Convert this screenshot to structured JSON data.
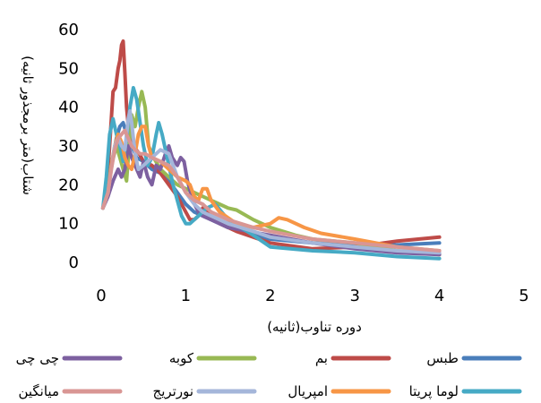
{
  "chart_data": {
    "type": "line",
    "title": "",
    "xlabel": "دوره تناوب(ثانیه)",
    "ylabel": "شتاب(متر برمجذور ثانیه)",
    "xlim": [
      0,
      5
    ],
    "ylim": [
      0,
      60
    ],
    "xticks": [
      "0",
      "1",
      "2",
      "3",
      "4",
      "5"
    ],
    "yticks": [
      "0",
      "10",
      "20",
      "30",
      "40",
      "50",
      "60"
    ],
    "grid": false,
    "legend_position": "bottom",
    "series": [
      {
        "name": "طبس",
        "color": "#4a7ebb",
        "points": [
          [
            0.02,
            14
          ],
          [
            0.08,
            20
          ],
          [
            0.12,
            25
          ],
          [
            0.18,
            32
          ],
          [
            0.22,
            35
          ],
          [
            0.26,
            36
          ],
          [
            0.3,
            33
          ],
          [
            0.36,
            30
          ],
          [
            0.42,
            27
          ],
          [
            0.5,
            26
          ],
          [
            0.6,
            24
          ],
          [
            0.7,
            23
          ],
          [
            0.8,
            21
          ],
          [
            0.9,
            18
          ],
          [
            1.0,
            15
          ],
          [
            1.1,
            13
          ],
          [
            1.2,
            12
          ],
          [
            1.3,
            11
          ],
          [
            1.5,
            9
          ],
          [
            1.8,
            7
          ],
          [
            2.0,
            6
          ],
          [
            2.5,
            5
          ],
          [
            3.0,
            4.5
          ],
          [
            3.5,
            4.5
          ],
          [
            4.0,
            5
          ]
        ]
      },
      {
        "name": "بم",
        "color": "#be4b48",
        "points": [
          [
            0.02,
            14
          ],
          [
            0.06,
            18
          ],
          [
            0.1,
            30
          ],
          [
            0.14,
            44
          ],
          [
            0.17,
            45
          ],
          [
            0.2,
            50
          ],
          [
            0.22,
            52
          ],
          [
            0.24,
            56
          ],
          [
            0.26,
            57
          ],
          [
            0.28,
            49
          ],
          [
            0.3,
            40
          ],
          [
            0.33,
            33
          ],
          [
            0.38,
            30
          ],
          [
            0.45,
            28
          ],
          [
            0.5,
            26
          ],
          [
            0.6,
            25
          ],
          [
            0.7,
            23
          ],
          [
            0.8,
            20
          ],
          [
            0.9,
            17
          ],
          [
            1.0,
            13
          ],
          [
            1.05,
            11
          ],
          [
            1.1,
            11
          ],
          [
            1.15,
            12
          ],
          [
            1.2,
            14
          ],
          [
            1.3,
            12
          ],
          [
            1.4,
            10
          ],
          [
            1.6,
            8
          ],
          [
            2.0,
            5
          ],
          [
            2.5,
            3.5
          ],
          [
            3.0,
            4
          ],
          [
            3.5,
            5.5
          ],
          [
            4.0,
            6.5
          ]
        ]
      },
      {
        "name": "کوبه",
        "color": "#98b954",
        "points": [
          [
            0.02,
            14
          ],
          [
            0.08,
            18
          ],
          [
            0.12,
            25
          ],
          [
            0.18,
            30
          ],
          [
            0.22,
            27
          ],
          [
            0.26,
            24
          ],
          [
            0.3,
            21
          ],
          [
            0.33,
            30
          ],
          [
            0.36,
            38
          ],
          [
            0.4,
            35
          ],
          [
            0.44,
            40
          ],
          [
            0.48,
            44
          ],
          [
            0.52,
            40
          ],
          [
            0.56,
            30
          ],
          [
            0.62,
            27
          ],
          [
            0.7,
            24
          ],
          [
            0.8,
            22
          ],
          [
            0.9,
            20
          ],
          [
            1.0,
            19
          ],
          [
            1.1,
            18
          ],
          [
            1.2,
            17
          ],
          [
            1.3,
            16
          ],
          [
            1.4,
            15
          ],
          [
            1.5,
            14
          ],
          [
            1.6,
            13.5
          ],
          [
            1.8,
            11
          ],
          [
            2.0,
            9
          ],
          [
            2.3,
            7
          ],
          [
            2.5,
            6
          ],
          [
            3.0,
            5
          ],
          [
            3.5,
            3
          ],
          [
            4.0,
            2
          ]
        ]
      },
      {
        "name": "چی چی",
        "color": "#7d60a0",
        "points": [
          [
            0.02,
            14
          ],
          [
            0.08,
            17
          ],
          [
            0.14,
            21
          ],
          [
            0.2,
            24
          ],
          [
            0.24,
            22
          ],
          [
            0.28,
            24
          ],
          [
            0.32,
            30
          ],
          [
            0.36,
            27
          ],
          [
            0.4,
            25
          ],
          [
            0.46,
            22
          ],
          [
            0.5,
            26
          ],
          [
            0.55,
            22
          ],
          [
            0.6,
            20
          ],
          [
            0.65,
            25
          ],
          [
            0.7,
            24
          ],
          [
            0.76,
            28
          ],
          [
            0.8,
            30
          ],
          [
            0.84,
            27
          ],
          [
            0.9,
            25
          ],
          [
            0.94,
            27
          ],
          [
            0.98,
            26
          ],
          [
            1.02,
            21
          ],
          [
            1.08,
            16
          ],
          [
            1.15,
            13
          ],
          [
            1.2,
            12
          ],
          [
            1.3,
            11
          ],
          [
            1.5,
            9
          ],
          [
            2.0,
            7
          ],
          [
            2.5,
            5
          ],
          [
            3.0,
            3.5
          ],
          [
            3.5,
            2.5
          ],
          [
            4.0,
            2
          ]
        ]
      },
      {
        "name": "لوما پریتا",
        "color": "#46aac5",
        "points": [
          [
            0.02,
            14
          ],
          [
            0.06,
            22
          ],
          [
            0.1,
            33
          ],
          [
            0.14,
            37
          ],
          [
            0.18,
            33
          ],
          [
            0.22,
            30
          ],
          [
            0.26,
            26
          ],
          [
            0.3,
            32
          ],
          [
            0.34,
            40
          ],
          [
            0.38,
            45
          ],
          [
            0.42,
            42
          ],
          [
            0.46,
            36
          ],
          [
            0.5,
            30
          ],
          [
            0.55,
            25
          ],
          [
            0.6,
            27
          ],
          [
            0.65,
            33
          ],
          [
            0.68,
            36
          ],
          [
            0.72,
            33
          ],
          [
            0.78,
            27
          ],
          [
            0.85,
            20
          ],
          [
            0.9,
            16
          ],
          [
            0.95,
            12
          ],
          [
            1.0,
            10
          ],
          [
            1.05,
            10
          ],
          [
            1.15,
            12
          ],
          [
            1.25,
            14
          ],
          [
            1.35,
            15
          ],
          [
            1.5,
            11
          ],
          [
            1.8,
            7
          ],
          [
            2.0,
            4
          ],
          [
            2.5,
            3
          ],
          [
            3.0,
            2.5
          ],
          [
            3.5,
            1.5
          ],
          [
            4.0,
            1
          ]
        ]
      },
      {
        "name": "امپریال",
        "color": "#f79646",
        "points": [
          [
            0.02,
            14
          ],
          [
            0.08,
            18
          ],
          [
            0.12,
            25
          ],
          [
            0.16,
            30
          ],
          [
            0.2,
            33
          ],
          [
            0.24,
            31
          ],
          [
            0.28,
            27
          ],
          [
            0.32,
            25
          ],
          [
            0.36,
            24
          ],
          [
            0.4,
            28
          ],
          [
            0.44,
            33
          ],
          [
            0.48,
            35
          ],
          [
            0.52,
            35
          ],
          [
            0.56,
            30
          ],
          [
            0.6,
            27
          ],
          [
            0.7,
            26
          ],
          [
            0.8,
            24
          ],
          [
            0.9,
            22
          ],
          [
            1.0,
            21
          ],
          [
            1.05,
            20
          ],
          [
            1.1,
            17
          ],
          [
            1.15,
            16
          ],
          [
            1.2,
            19
          ],
          [
            1.25,
            19
          ],
          [
            1.3,
            16
          ],
          [
            1.4,
            13
          ],
          [
            1.6,
            10
          ],
          [
            1.8,
            9
          ],
          [
            2.0,
            10
          ],
          [
            2.1,
            11.5
          ],
          [
            2.2,
            11
          ],
          [
            2.4,
            9
          ],
          [
            2.6,
            7.5
          ],
          [
            3.0,
            6
          ],
          [
            3.5,
            4
          ],
          [
            4.0,
            3
          ]
        ]
      },
      {
        "name": "نورتریج",
        "color": "#a5b6da",
        "points": [
          [
            0.02,
            14
          ],
          [
            0.08,
            18
          ],
          [
            0.12,
            24
          ],
          [
            0.16,
            30
          ],
          [
            0.2,
            32
          ],
          [
            0.24,
            30
          ],
          [
            0.28,
            29
          ],
          [
            0.32,
            37
          ],
          [
            0.34,
            39
          ],
          [
            0.36,
            36
          ],
          [
            0.4,
            28
          ],
          [
            0.44,
            24
          ],
          [
            0.5,
            25
          ],
          [
            0.6,
            27
          ],
          [
            0.7,
            29
          ],
          [
            0.8,
            28
          ],
          [
            0.9,
            22
          ],
          [
            1.0,
            18
          ],
          [
            1.1,
            15
          ],
          [
            1.2,
            13
          ],
          [
            1.3,
            12
          ],
          [
            1.5,
            10
          ],
          [
            1.8,
            8
          ],
          [
            2.0,
            6.5
          ],
          [
            2.5,
            5
          ],
          [
            3.0,
            4
          ],
          [
            3.5,
            3
          ],
          [
            4.0,
            2.5
          ]
        ]
      },
      {
        "name": "میانگین",
        "color": "#d99694",
        "points": [
          [
            0.02,
            14
          ],
          [
            0.08,
            18
          ],
          [
            0.12,
            24
          ],
          [
            0.16,
            29
          ],
          [
            0.2,
            32
          ],
          [
            0.24,
            33
          ],
          [
            0.28,
            34
          ],
          [
            0.32,
            32
          ],
          [
            0.36,
            30
          ],
          [
            0.4,
            29
          ],
          [
            0.46,
            28
          ],
          [
            0.52,
            28
          ],
          [
            0.6,
            27
          ],
          [
            0.7,
            26
          ],
          [
            0.8,
            25
          ],
          [
            0.9,
            22
          ],
          [
            1.0,
            18
          ],
          [
            1.1,
            16
          ],
          [
            1.2,
            15
          ],
          [
            1.3,
            13
          ],
          [
            1.5,
            11
          ],
          [
            1.8,
            9
          ],
          [
            2.0,
            8
          ],
          [
            2.5,
            6
          ],
          [
            3.0,
            5
          ],
          [
            3.5,
            4
          ],
          [
            4.0,
            3
          ]
        ]
      }
    ]
  }
}
